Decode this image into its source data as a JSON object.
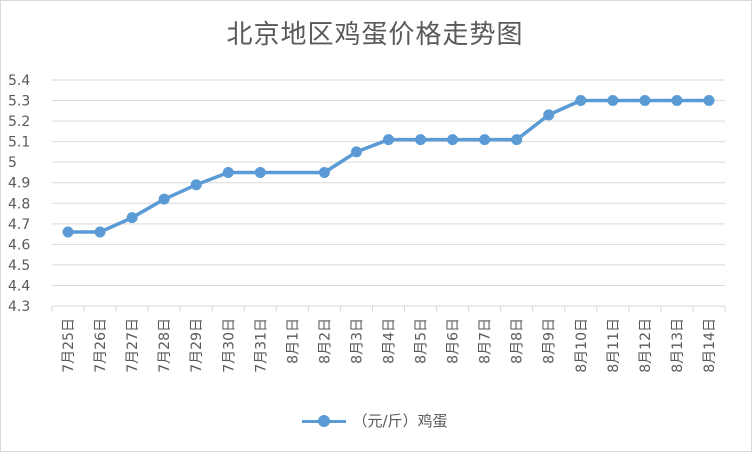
{
  "chart_data": {
    "type": "line",
    "title": "北京地区鸡蛋价格走势图",
    "xlabel": "",
    "ylabel": "",
    "categories": [
      "7月25日",
      "7月26日",
      "7月27日",
      "7月28日",
      "7月29日",
      "7月30日",
      "7月31日",
      "8月1日",
      "8月2日",
      "8月3日",
      "8月4日",
      "8月5日",
      "8月6日",
      "8月7日",
      "8月8日",
      "8月9日",
      "8月10日",
      "8月11日",
      "8月12日",
      "8月13日",
      "8月14日"
    ],
    "series": [
      {
        "name": "（元/斤）鸡蛋",
        "color": "#5b9bd5",
        "values": [
          4.66,
          4.66,
          4.73,
          4.82,
          4.89,
          4.95,
          4.95,
          null,
          4.95,
          5.05,
          5.11,
          5.11,
          5.11,
          5.11,
          5.11,
          5.23,
          5.3,
          5.3,
          5.3,
          5.3,
          5.3
        ]
      }
    ],
    "ylim": [
      4.3,
      5.4
    ],
    "yticks": [
      "4.3",
      "4.4",
      "4.5",
      "4.6",
      "4.7",
      "4.8",
      "4.9",
      "5",
      "5.1",
      "5.2",
      "5.3",
      "5.4"
    ],
    "grid": true,
    "legend_position": "bottom"
  }
}
